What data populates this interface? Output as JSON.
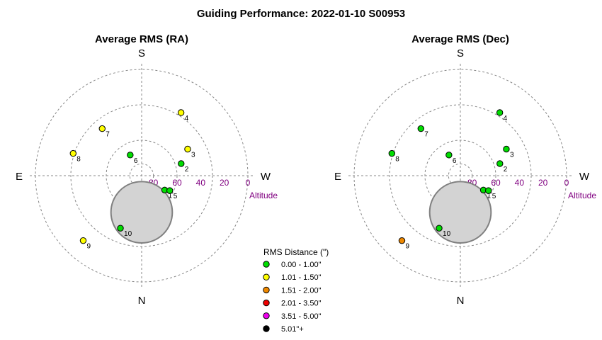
{
  "title": "Guiding Performance: 2022-01-10 S00953",
  "chart_data": [
    {
      "type": "scatter",
      "projection": "polar",
      "title": "Average RMS (RA)",
      "compass": {
        "top": "S",
        "bottom": "N",
        "left": "E",
        "right": "W"
      },
      "radial_axis": {
        "label": "Altitude",
        "ticks": [
          "80",
          "60",
          "40",
          "20",
          "0"
        ],
        "values": [
          80,
          60,
          40,
          20,
          0
        ],
        "range": [
          90,
          0
        ]
      },
      "obstruction": {
        "center_azimuth": 0,
        "center_altitude": 59,
        "angular_radius": 26
      },
      "points": [
        {
          "label": "1",
          "azimuth": 302,
          "altitude": 67,
          "category": 0
        },
        {
          "label": "2",
          "azimuth": 253,
          "altitude": 55,
          "category": 0
        },
        {
          "label": "3",
          "azimuth": 240,
          "altitude": 45,
          "category": 1
        },
        {
          "label": "4",
          "azimuth": 212,
          "altitude": 27,
          "category": 1
        },
        {
          "label": "5",
          "azimuth": 298,
          "altitude": 63,
          "category": 0
        },
        {
          "label": "6",
          "azimuth": 151,
          "altitude": 70,
          "category": 0
        },
        {
          "label": "7",
          "azimuth": 140,
          "altitude": 38,
          "category": 1
        },
        {
          "label": "8",
          "azimuth": 108,
          "altitude": 29,
          "category": 1
        },
        {
          "label": "9",
          "azimuth": 42,
          "altitude": 16,
          "category": 1
        },
        {
          "label": "10",
          "azimuth": 22,
          "altitude": 42,
          "category": 0
        }
      ]
    },
    {
      "type": "scatter",
      "projection": "polar",
      "title": "Average RMS (Dec)",
      "compass": {
        "top": "S",
        "bottom": "N",
        "left": "E",
        "right": "W"
      },
      "radial_axis": {
        "label": "Altitude",
        "ticks": [
          "80",
          "60",
          "40",
          "20",
          "0"
        ],
        "values": [
          80,
          60,
          40,
          20,
          0
        ],
        "range": [
          90,
          0
        ]
      },
      "obstruction": {
        "center_azimuth": 0,
        "center_altitude": 59,
        "angular_radius": 26
      },
      "points": [
        {
          "label": "1",
          "azimuth": 302,
          "altitude": 67,
          "category": 0
        },
        {
          "label": "2",
          "azimuth": 253,
          "altitude": 55,
          "category": 0
        },
        {
          "label": "3",
          "azimuth": 240,
          "altitude": 45,
          "category": 0
        },
        {
          "label": "4",
          "azimuth": 212,
          "altitude": 27,
          "category": 0
        },
        {
          "label": "5",
          "azimuth": 298,
          "altitude": 63,
          "category": 0
        },
        {
          "label": "6",
          "azimuth": 151,
          "altitude": 70,
          "category": 0
        },
        {
          "label": "7",
          "azimuth": 140,
          "altitude": 38,
          "category": 0
        },
        {
          "label": "8",
          "azimuth": 108,
          "altitude": 29,
          "category": 0
        },
        {
          "label": "9",
          "azimuth": 42,
          "altitude": 16,
          "category": 2
        },
        {
          "label": "10",
          "azimuth": 22,
          "altitude": 42,
          "category": 0
        }
      ]
    }
  ],
  "legend": {
    "title": "RMS Distance (\")",
    "placement": "bottom-center",
    "items": [
      {
        "label": "0.00 - 1.00\"",
        "color": "#00dd00"
      },
      {
        "label": "1.01 - 1.50\"",
        "color": "#ffff00"
      },
      {
        "label": "1.51 - 2.00\"",
        "color": "#ee8800"
      },
      {
        "label": "2.01 - 3.50\"",
        "color": "#ee0000"
      },
      {
        "label": "3.51 - 5.00\"",
        "color": "#ee00ee"
      },
      {
        "label": "5.01\"+",
        "color": "#000000"
      }
    ]
  }
}
